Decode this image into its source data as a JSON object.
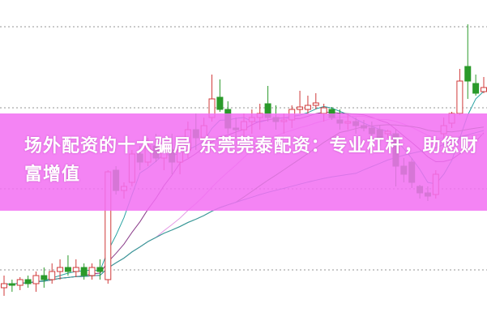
{
  "banner": {
    "title": "场外配资的十大骗局 东莞莞泰配资：专业杠杆，助您财富增值",
    "color": "#f270f2"
  },
  "chart_data": {
    "type": "candlestick",
    "title": "",
    "xlabel": "",
    "ylabel": "",
    "ylim": [
      32,
      433
    ],
    "gridlines": [
      100,
      200,
      300,
      400
    ],
    "grid": "horizontal dotted",
    "up_color": "#d03a3a",
    "down_color": "#2a9a2a",
    "moving_averages": [
      {
        "period": 5,
        "color": "#2aa3a3"
      },
      {
        "period": 10,
        "color": "#8a3c8a"
      },
      {
        "period": 20,
        "color": "#e59ae5"
      },
      {
        "period": 30,
        "color": "#3a8a3a"
      },
      {
        "period": 45,
        "color": "#3a9aa5"
      }
    ],
    "ohlc": [
      [
        78,
        93,
        68,
        83
      ],
      [
        83,
        88,
        73,
        81
      ],
      [
        81,
        91,
        75,
        88
      ],
      [
        88,
        93,
        78,
        83
      ],
      [
        83,
        98,
        73,
        93
      ],
      [
        93,
        103,
        78,
        88
      ],
      [
        88,
        108,
        83,
        98
      ],
      [
        98,
        113,
        88,
        103
      ],
      [
        103,
        118,
        93,
        98
      ],
      [
        98,
        113,
        91,
        103
      ],
      [
        103,
        108,
        88,
        93
      ],
      [
        93,
        108,
        88,
        103
      ],
      [
        103,
        113,
        88,
        98
      ],
      [
        88,
        223,
        83,
        221
      ],
      [
        223,
        228,
        193,
        198
      ],
      [
        198,
        208,
        188,
        203
      ],
      [
        208,
        248,
        203,
        243
      ],
      [
        243,
        253,
        223,
        233
      ],
      [
        233,
        263,
        228,
        253
      ],
      [
        253,
        268,
        233,
        238
      ],
      [
        238,
        263,
        223,
        248
      ],
      [
        248,
        268,
        218,
        233
      ],
      [
        233,
        258,
        218,
        248
      ],
      [
        248,
        283,
        238,
        273
      ],
      [
        273,
        293,
        248,
        263
      ],
      [
        263,
        288,
        255,
        278
      ],
      [
        288,
        341,
        283,
        311
      ],
      [
        313,
        335,
        295,
        298
      ],
      [
        298,
        308,
        268,
        275
      ],
      [
        275,
        288,
        263,
        273
      ],
      [
        273,
        293,
        265,
        283
      ],
      [
        283,
        298,
        268,
        288
      ],
      [
        288,
        305,
        273,
        293
      ],
      [
        305,
        327,
        283,
        288
      ],
      [
        288,
        303,
        273,
        283
      ],
      [
        283,
        293,
        268,
        285
      ],
      [
        285,
        303,
        275,
        298
      ],
      [
        298,
        321,
        293,
        301
      ],
      [
        298,
        315,
        293,
        303
      ],
      [
        303,
        318,
        298,
        306
      ],
      [
        293,
        305,
        283,
        300
      ],
      [
        298,
        301,
        285,
        288
      ],
      [
        285,
        298,
        273,
        281
      ],
      [
        281,
        293,
        273,
        283
      ],
      [
        283,
        288,
        268,
        278
      ],
      [
        278,
        285,
        271,
        275
      ],
      [
        275,
        283,
        263,
        268
      ],
      [
        273,
        278,
        253,
        263
      ],
      [
        268,
        273,
        263,
        271
      ],
      [
        268,
        273,
        203,
        228
      ],
      [
        228,
        238,
        208,
        218
      ],
      [
        233,
        238,
        201,
        208
      ],
      [
        203,
        205,
        188,
        195
      ],
      [
        195,
        203,
        185,
        191
      ],
      [
        193,
        223,
        188,
        218
      ],
      [
        268,
        288,
        263,
        278
      ],
      [
        281,
        295,
        275,
        293
      ],
      [
        293,
        348,
        291,
        333
      ],
      [
        351,
        403,
        311,
        333
      ],
      [
        330,
        341,
        315,
        318
      ],
      [
        320,
        338,
        318,
        325
      ]
    ]
  }
}
